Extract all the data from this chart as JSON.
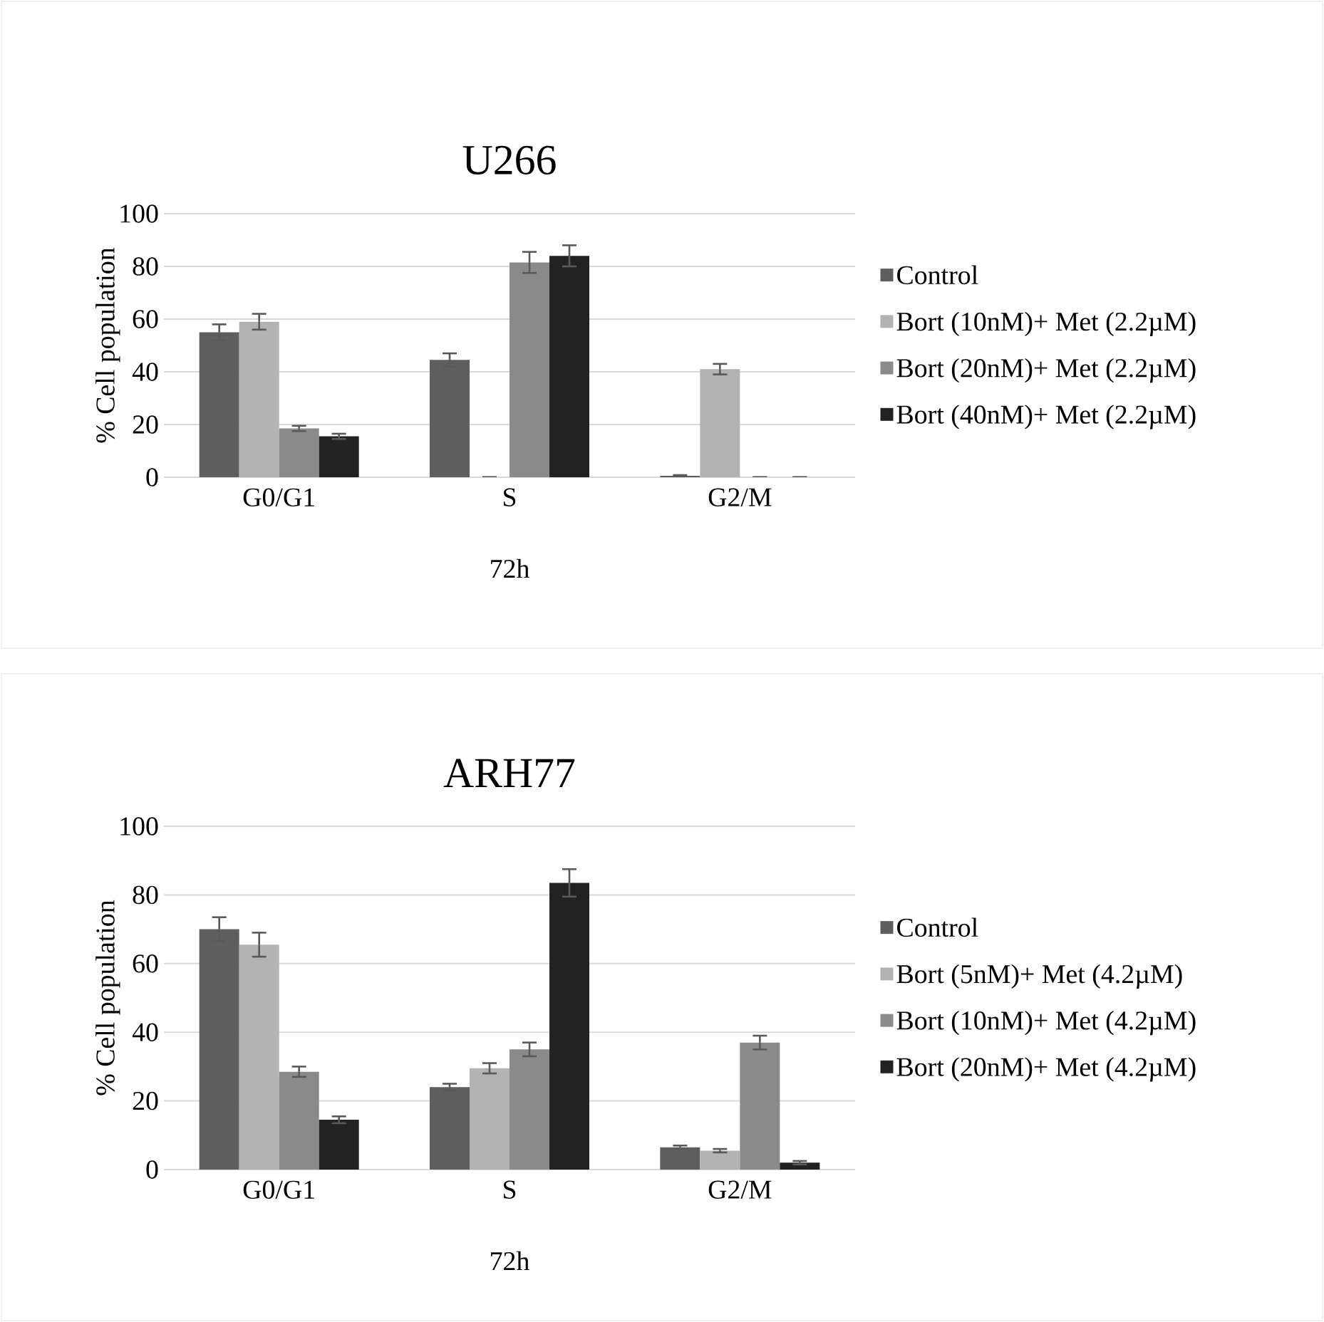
{
  "chart_data": [
    {
      "type": "bar",
      "title": "U266",
      "xlabel": "72h",
      "ylabel": "% Cell population",
      "categories": [
        "G0/G1",
        "S",
        "G2/M"
      ],
      "ylim": [
        0,
        100
      ],
      "yticks": [
        0,
        20,
        40,
        60,
        80,
        100
      ],
      "grid": "y",
      "legend": "right",
      "series": [
        {
          "name": "Control",
          "color": "#5e5e5e",
          "values": [
            55,
            44.5,
            0.5
          ],
          "errors": [
            3,
            2.5,
            0.3
          ]
        },
        {
          "name": "Bort (10nM)+ Met (2.2µM)",
          "color": "#b3b3b3",
          "values": [
            59,
            0,
            41
          ],
          "errors": [
            3,
            0,
            2
          ]
        },
        {
          "name": "Bort (20nM)+ Met (2.2µM)",
          "color": "#8a8a8a",
          "values": [
            18.5,
            81.5,
            0
          ],
          "errors": [
            1,
            4,
            0
          ]
        },
        {
          "name": "Bort (40nM)+ Met (2.2µM)",
          "color": "#222222",
          "values": [
            15.5,
            84,
            0
          ],
          "errors": [
            1,
            4,
            0
          ]
        }
      ]
    },
    {
      "type": "bar",
      "title": "ARH77",
      "xlabel": "72h",
      "ylabel": "% Cell population",
      "categories": [
        "G0/G1",
        "S",
        "G2/M"
      ],
      "ylim": [
        0,
        100
      ],
      "yticks": [
        0,
        20,
        40,
        60,
        80,
        100
      ],
      "grid": "y",
      "legend": "right",
      "series": [
        {
          "name": "Control",
          "color": "#5e5e5e",
          "values": [
            70,
            24,
            6.5
          ],
          "errors": [
            3.5,
            1,
            0.5
          ]
        },
        {
          "name": "Bort (5nM)+ Met (4.2µM)",
          "color": "#b3b3b3",
          "values": [
            65.5,
            29.5,
            5.5
          ],
          "errors": [
            3.5,
            1.5,
            0.5
          ]
        },
        {
          "name": "Bort (10nM)+ Met (4.2µM)",
          "color": "#8a8a8a",
          "values": [
            28.5,
            35,
            37
          ],
          "errors": [
            1.5,
            2,
            2
          ]
        },
        {
          "name": "Bort (20nM)+ Met (4.2µM)",
          "color": "#222222",
          "values": [
            14.5,
            83.5,
            2
          ],
          "errors": [
            1,
            4,
            0.5
          ]
        }
      ]
    }
  ]
}
